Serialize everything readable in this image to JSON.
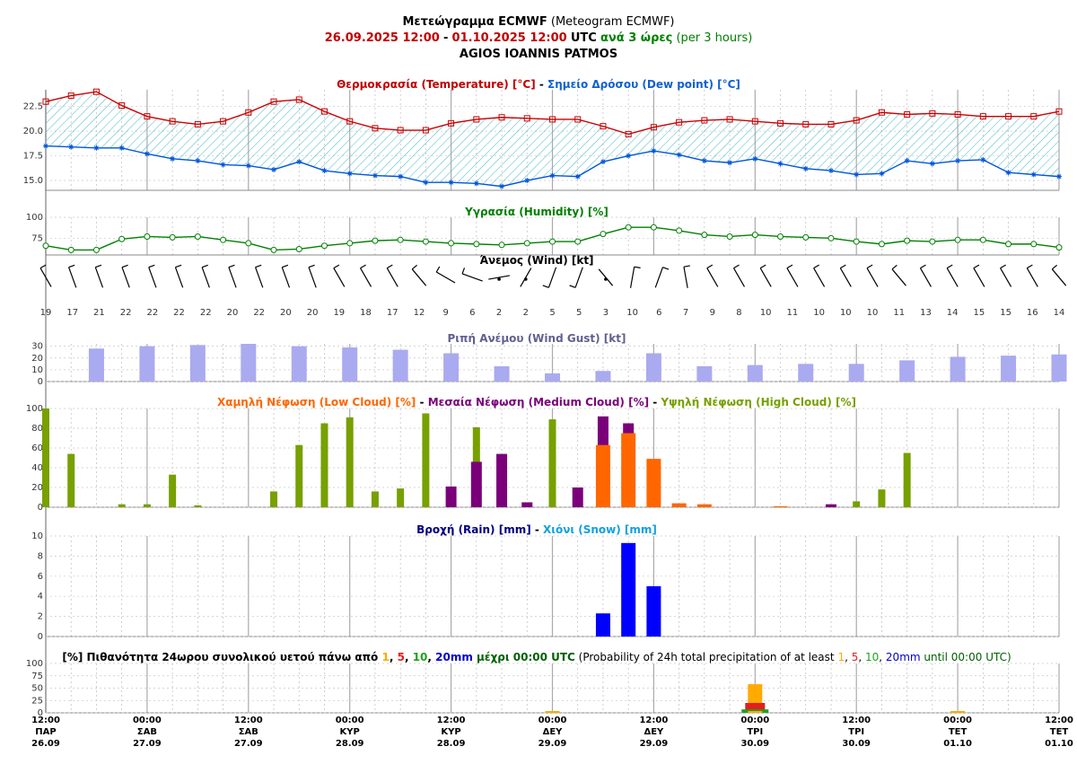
{
  "header": {
    "line1_greek": "Μετεώγραμμα ECMWF",
    "line1_en": "(Meteogram ECMWF)",
    "line2_start": "26.09.2025 12:00",
    "line2_dash": "-",
    "line2_end": "01.10.2025 12:00",
    "line2_utc": "UTC",
    "line2_step": "ανά 3 ώρες",
    "line2_step_en": "(per 3 hours)",
    "line3_location": "AGIOS IOANNIS PATMOS"
  },
  "colors": {
    "temperature": "#cc0000",
    "dew_point": "#0055dd",
    "humidity": "#008000",
    "gust": "#aaaaf0",
    "low_cloud": "#ff6600",
    "medium_cloud": "#7a007a",
    "high_cloud": "#77a000",
    "rain": "#0000ff",
    "prob_1mm": "#ffaa00",
    "prob_5mm": "#e02020",
    "prob_10mm": "#20a020",
    "prob_20mm": "#0000cc"
  },
  "panels": {
    "temp": {
      "t1": "Θερμοκρασία (Temperature) [°C]",
      "sep": " - ",
      "t2": "Σημείο Δρόσου (Dew point) [°C]"
    },
    "humidity": {
      "t1": "Υγρασία (Humidity) [%]"
    },
    "wind": {
      "t1": "Άνεμος (Wind) [kt]"
    },
    "gust": {
      "t1": "Ριπή Ανέμου (Wind Gust) [kt]"
    },
    "cloud": {
      "t1": "Χαμηλή Νέφωση (Low Cloud) [%]",
      "sep": " - ",
      "t2": "Μεσαία Νέφωση (Medium Cloud) [%]",
      "sep2": " - ",
      "t3": "Υψηλή Νέφωση (High Cloud) [%]"
    },
    "rain": {
      "t1": "Βροχή (Rain) [mm]",
      "sep": " - ",
      "t2": "Χιόνι (Snow) [mm]"
    },
    "prob": {
      "p1": "[%] Πιθανότητα 24ωρου συνολικού υετού πάνω από ",
      "v1": "1",
      "c1": ", ",
      "v5": "5",
      "c2": ", ",
      "v10": "10",
      "c3": ", ",
      "v20": "20mm",
      "p2": " μέχρι 00:00 UTC",
      "p3": " (Probability of 24h total precipitation of at least ",
      "w1": "1",
      "d1": ", ",
      "w5": "5",
      "d2": ", ",
      "w10": "10",
      "d3": ", ",
      "w20": "20mm",
      "p4": " until 00:00 UTC)"
    }
  },
  "x_axis": [
    {
      "time": "12:00",
      "day": "ΠΑΡ",
      "date": "26.09"
    },
    {
      "time": "00:00",
      "day": "ΣΑΒ",
      "date": "27.09"
    },
    {
      "time": "12:00",
      "day": "ΣΑΒ",
      "date": "27.09"
    },
    {
      "time": "00:00",
      "day": "ΚΥΡ",
      "date": "28.09"
    },
    {
      "time": "12:00",
      "day": "ΚΥΡ",
      "date": "28.09"
    },
    {
      "time": "00:00",
      "day": "ΔΕΥ",
      "date": "29.09"
    },
    {
      "time": "12:00",
      "day": "ΔΕΥ",
      "date": "29.09"
    },
    {
      "time": "00:00",
      "day": "ΤΡΙ",
      "date": "30.09"
    },
    {
      "time": "12:00",
      "day": "ΤΡΙ",
      "date": "30.09"
    },
    {
      "time": "00:00",
      "day": "ΤΕΤ",
      "date": "01.10"
    },
    {
      "time": "12:00",
      "day": "ΤΕΤ",
      "date": "01.10"
    }
  ],
  "chart_data": [
    {
      "type": "line",
      "title": "Θερμοκρασία (Temperature) [°C] - Σημείο Δρόσου (Dew point) [°C]",
      "x_steps": 41,
      "x_interval_hours": 3,
      "ylim": [
        14,
        24.2
      ],
      "yticks": [
        15.0,
        17.5,
        20.0,
        22.5
      ],
      "series": [
        {
          "name": "Θερμοκρασία (Temperature)",
          "values": [
            23.0,
            23.6,
            24.0,
            22.6,
            21.5,
            21.0,
            20.7,
            21.0,
            21.9,
            23.0,
            23.2,
            22.0,
            21.0,
            20.3,
            20.1,
            20.1,
            20.8,
            21.2,
            21.4,
            21.3,
            21.2,
            21.2,
            20.5,
            19.7,
            20.4,
            20.9,
            21.1,
            21.2,
            21.0,
            20.8,
            20.7,
            20.7,
            21.1,
            21.9,
            21.7,
            21.8,
            21.7,
            21.5,
            21.5,
            21.5,
            22.0
          ]
        },
        {
          "name": "Σημείο Δρόσου (Dew point)",
          "values": [
            18.5,
            18.4,
            18.3,
            18.3,
            17.7,
            17.2,
            17.0,
            16.6,
            16.5,
            16.1,
            16.9,
            16.0,
            15.7,
            15.5,
            15.4,
            14.8,
            14.8,
            14.7,
            14.4,
            15.0,
            15.5,
            15.4,
            16.9,
            17.5,
            18.0,
            17.6,
            17.0,
            16.8,
            17.2,
            16.7,
            16.2,
            16.0,
            15.6,
            15.7,
            17.0,
            16.7,
            17.0,
            17.1,
            15.8,
            15.6,
            15.4
          ]
        }
      ]
    },
    {
      "type": "line",
      "title": "Υγρασία (Humidity) [%]",
      "x_steps": 41,
      "ylim": [
        55,
        100
      ],
      "yticks": [
        75,
        100
      ],
      "series": [
        {
          "name": "Υγρασία (Humidity)",
          "values": [
            66,
            61,
            61,
            74,
            77,
            76,
            77,
            73,
            69,
            61,
            62,
            66,
            69,
            72,
            73,
            71,
            69,
            68,
            67,
            69,
            71,
            71,
            80,
            88,
            88,
            84,
            79,
            77,
            79,
            77,
            76,
            75,
            71,
            68,
            72,
            71,
            73,
            73,
            68,
            68,
            64
          ]
        }
      ]
    },
    {
      "type": "table",
      "title": "Άνεμος (Wind) [kt]",
      "speed_kt": [
        19,
        17,
        21,
        22,
        22,
        22,
        22,
        20,
        22,
        20,
        20,
        19,
        18,
        17,
        12,
        9,
        6,
        2,
        2,
        5,
        5,
        3,
        10,
        6,
        7,
        9,
        8,
        10,
        11,
        10,
        10,
        10,
        11,
        13,
        14,
        15,
        15,
        16,
        14
      ],
      "direction_deg": [
        330,
        340,
        340,
        340,
        340,
        340,
        340,
        340,
        340,
        340,
        340,
        330,
        330,
        330,
        320,
        300,
        290,
        260,
        210,
        200,
        200,
        320,
        10,
        20,
        350,
        330,
        330,
        330,
        330,
        330,
        330,
        330,
        320,
        330,
        330,
        330,
        330,
        330,
        320
      ]
    },
    {
      "type": "bar",
      "title": "Ριπή Ανέμου (Wind Gust) [kt]",
      "ylim": [
        0,
        32
      ],
      "yticks": [
        0,
        10,
        20,
        30
      ],
      "x_steps": 41,
      "bar_index": [
        2,
        4,
        6,
        8,
        10,
        12,
        14,
        16,
        18,
        20,
        22,
        24,
        26,
        28,
        30,
        32,
        34,
        36,
        38,
        40
      ],
      "values": [
        28,
        30,
        31,
        32,
        30,
        29,
        27,
        24,
        13,
        7,
        9,
        24,
        13,
        14,
        15,
        15,
        18,
        21,
        22,
        23
      ]
    },
    {
      "type": "bar",
      "title": "Χαμηλή Νέφωση (Low Cloud) [%] - Μεσαία Νέφωση (Medium Cloud) [%] - Υψηλή Νέφωση (High Cloud) [%]",
      "ylim": [
        0,
        100
      ],
      "yticks": [
        0,
        20,
        40,
        60,
        80,
        100
      ],
      "x_steps": 41,
      "series": [
        {
          "name": "Χαμηλή Νέφωση (Low Cloud)",
          "index": [
            22,
            23,
            24,
            25,
            26,
            29
          ],
          "values": [
            63,
            75,
            49,
            4,
            3,
            1
          ]
        },
        {
          "name": "Μεσαία Νέφωση (Medium Cloud)",
          "index": [
            16,
            17,
            18,
            19,
            21,
            22,
            23,
            31
          ],
          "values": [
            21,
            46,
            54,
            5,
            20,
            92,
            85,
            3
          ]
        },
        {
          "name": "Υψηλή Νέφωση (High Cloud)",
          "index": [
            0,
            1,
            3,
            4,
            5,
            6,
            9,
            10,
            11,
            12,
            13,
            14,
            15,
            17,
            20,
            21,
            32,
            33,
            34
          ],
          "values": [
            100,
            54,
            3,
            3,
            33,
            2,
            16,
            63,
            85,
            91,
            16,
            19,
            95,
            81,
            89,
            5,
            6,
            18,
            55
          ]
        }
      ]
    },
    {
      "type": "bar",
      "title": "Βροχή (Rain) [mm] - Χιόνι (Snow) [mm]",
      "ylim": [
        0,
        10
      ],
      "yticks": [
        0,
        2,
        4,
        6,
        8,
        10
      ],
      "x_steps": 41,
      "series": [
        {
          "name": "Βροχή (Rain)",
          "index": [
            22,
            23,
            24
          ],
          "values": [
            2.3,
            9.3,
            5.0
          ]
        },
        {
          "name": "Χιόνι (Snow)",
          "index": [],
          "values": []
        }
      ]
    },
    {
      "type": "bar",
      "title": "[%] Πιθανότητα 24ωρου συνολικού υετού",
      "ylim": [
        0,
        100
      ],
      "yticks": [
        0,
        25,
        50,
        75,
        100
      ],
      "categories": [
        "29.09 00:00",
        "30.09 00:00",
        "01.10 00:00"
      ],
      "series": [
        {
          "name": "1",
          "values": [
            2,
            58,
            2
          ]
        },
        {
          "name": "5",
          "values": [
            0,
            20,
            0
          ]
        },
        {
          "name": "10",
          "values": [
            0,
            7,
            0
          ]
        },
        {
          "name": "20mm",
          "values": [
            0,
            0,
            0
          ]
        }
      ]
    }
  ]
}
